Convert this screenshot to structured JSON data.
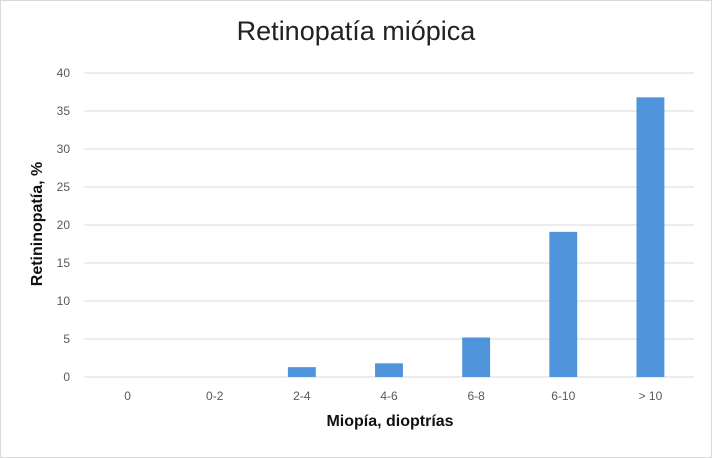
{
  "chart_data": {
    "type": "bar",
    "title": "Retinopatía miópica",
    "xlabel": "Miopía, dioptrías",
    "ylabel": "Retininopatía, %",
    "categories": [
      "0",
      "0-2",
      "2-4",
      "4-6",
      "6-8",
      "6-10",
      "> 10"
    ],
    "values": [
      0,
      0,
      1.3,
      1.8,
      5.2,
      19.1,
      36.8
    ],
    "ylim": [
      0,
      40
    ],
    "yticks": [
      "0",
      "5",
      "10",
      "15",
      "20",
      "25",
      "30",
      "35",
      "40"
    ],
    "grid": true,
    "legend": "none",
    "bar_color": "#5095dc",
    "grid_color": "#d9d9d9"
  }
}
